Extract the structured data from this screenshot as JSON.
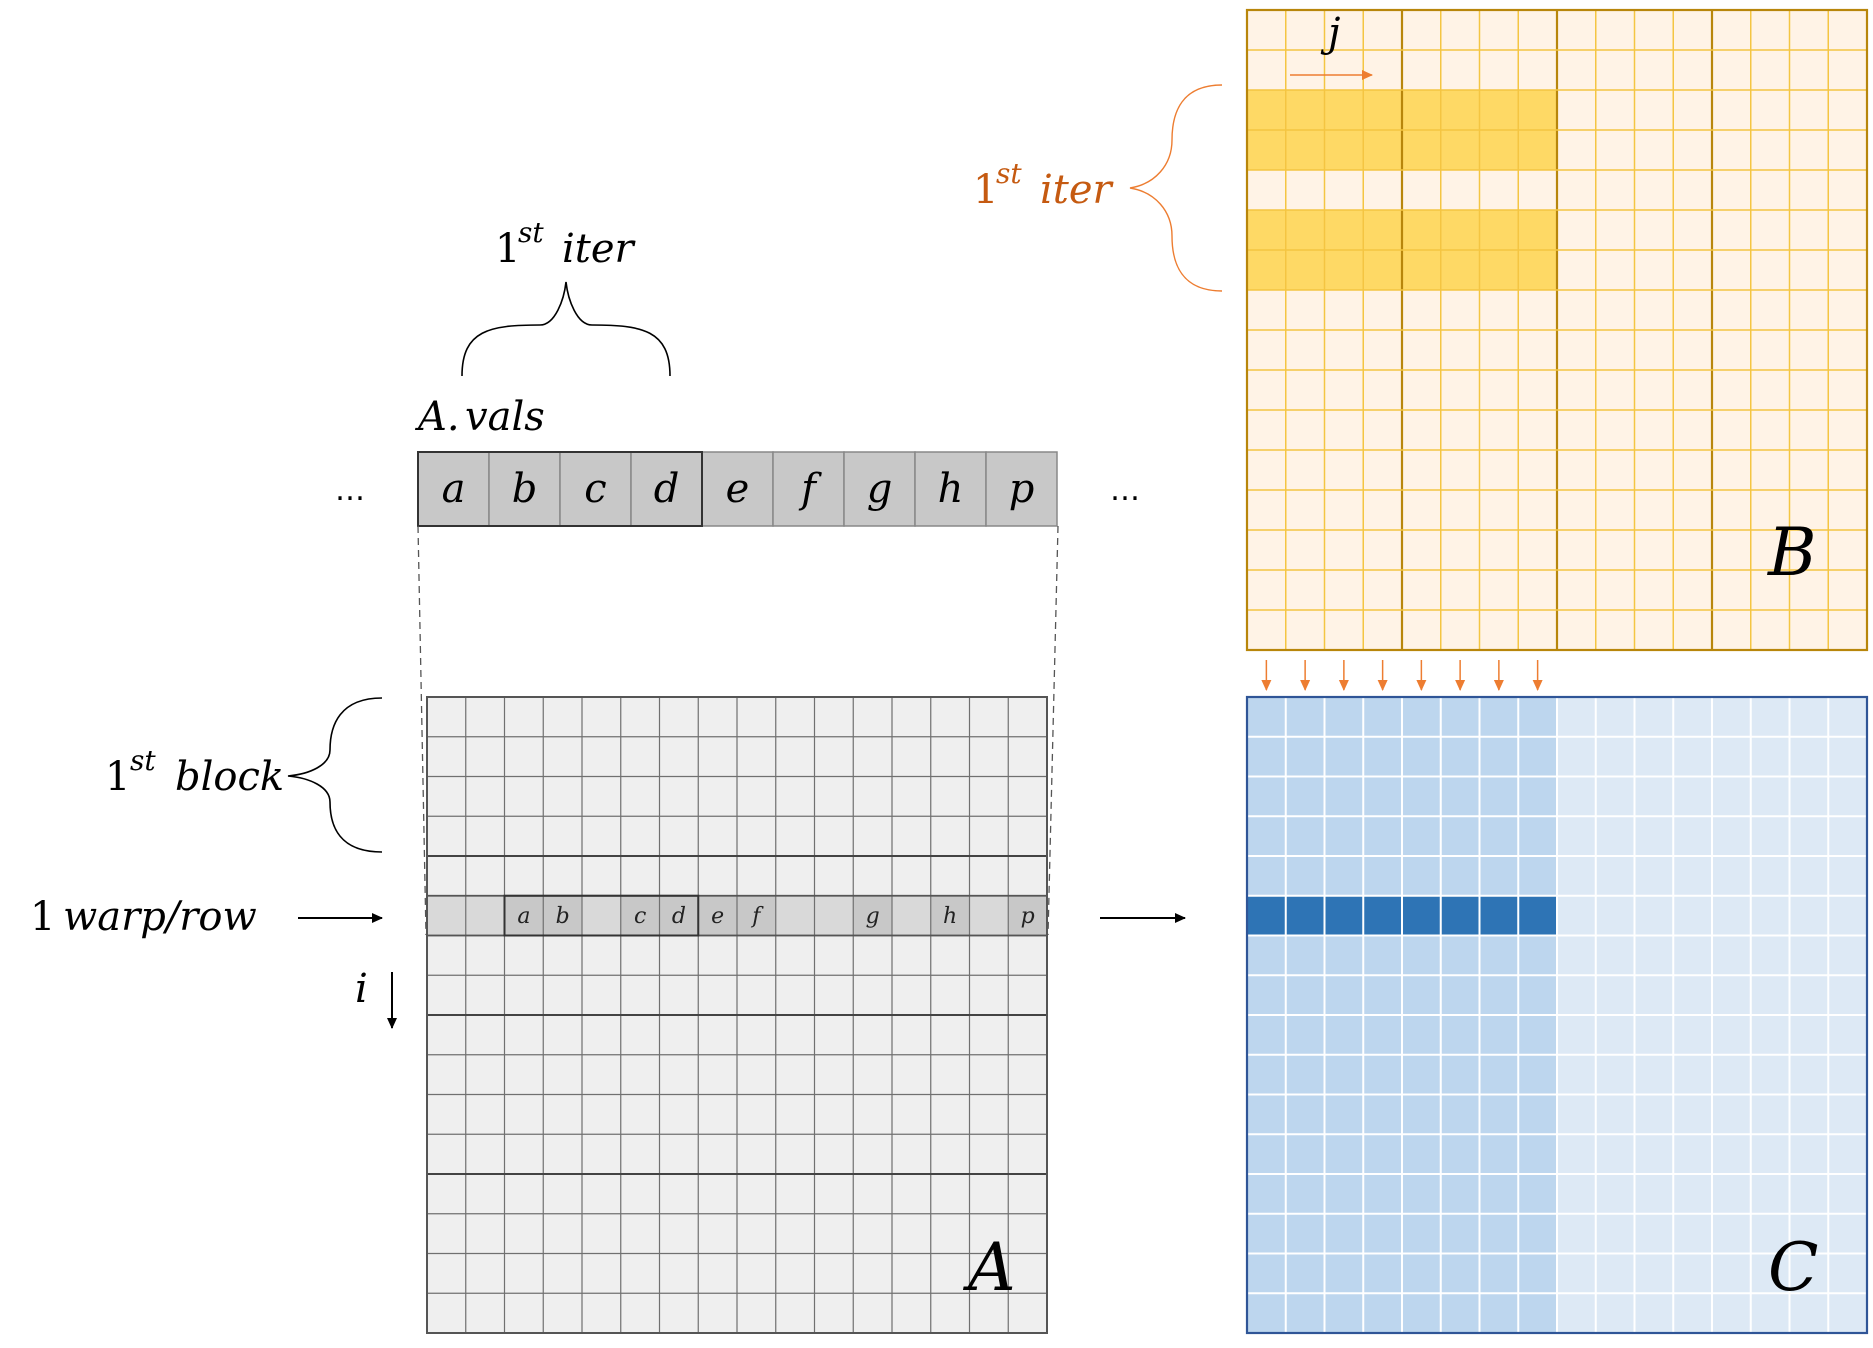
{
  "colors": {
    "a_fill": "#efefef",
    "a_line": "#707070",
    "a_cell": "#c8c8c8",
    "a_row": "#d9d9d9",
    "b_fill": "#fff3e6",
    "b_line": "#f4c542",
    "b_frame": "#b8860b",
    "b_highlight": "#fed965",
    "c_fill": "#dde9f5",
    "c_dark_fill": "#bdd6ee",
    "c_highlight": "#2e74b5",
    "c_frame": "#2f5597",
    "orange": "#ed7d31",
    "label_orange": "#c55a11"
  },
  "vals": {
    "label_main": "A.",
    "label_sub": "vals",
    "cells": [
      "a",
      "b",
      "c",
      "d",
      "e",
      "f",
      "g",
      "h",
      "p"
    ],
    "ellipsis": "…"
  },
  "iter_label": {
    "num": "1",
    "sup": "st",
    "word": "iter"
  },
  "block_label": {
    "num": "1",
    "sup": "st",
    "word": "block"
  },
  "warp_label": {
    "num": "1",
    "word": "warp/row"
  },
  "index_i": "i",
  "index_j": "j",
  "matrix_a": {
    "name": "A",
    "rows": 16,
    "cols": 16,
    "active_row": 5,
    "row_entries": [
      {
        "col": 2,
        "letter": "a"
      },
      {
        "col": 3,
        "letter": "b"
      },
      {
        "col": 5,
        "letter": "c"
      },
      {
        "col": 6,
        "letter": "d"
      },
      {
        "col": 7,
        "letter": "e"
      },
      {
        "col": 8,
        "letter": "f"
      },
      {
        "col": 11,
        "letter": "g"
      },
      {
        "col": 13,
        "letter": "h"
      },
      {
        "col": 15,
        "letter": "p"
      }
    ]
  },
  "matrix_b": {
    "name": "B",
    "rows": 16,
    "cols": 16,
    "highlight_rows": [
      2,
      3,
      5,
      6
    ],
    "highlight_cols": 8
  },
  "matrix_c": {
    "name": "C",
    "rows": 16,
    "cols": 16,
    "active_row": 5,
    "highlight_cols": 8
  }
}
